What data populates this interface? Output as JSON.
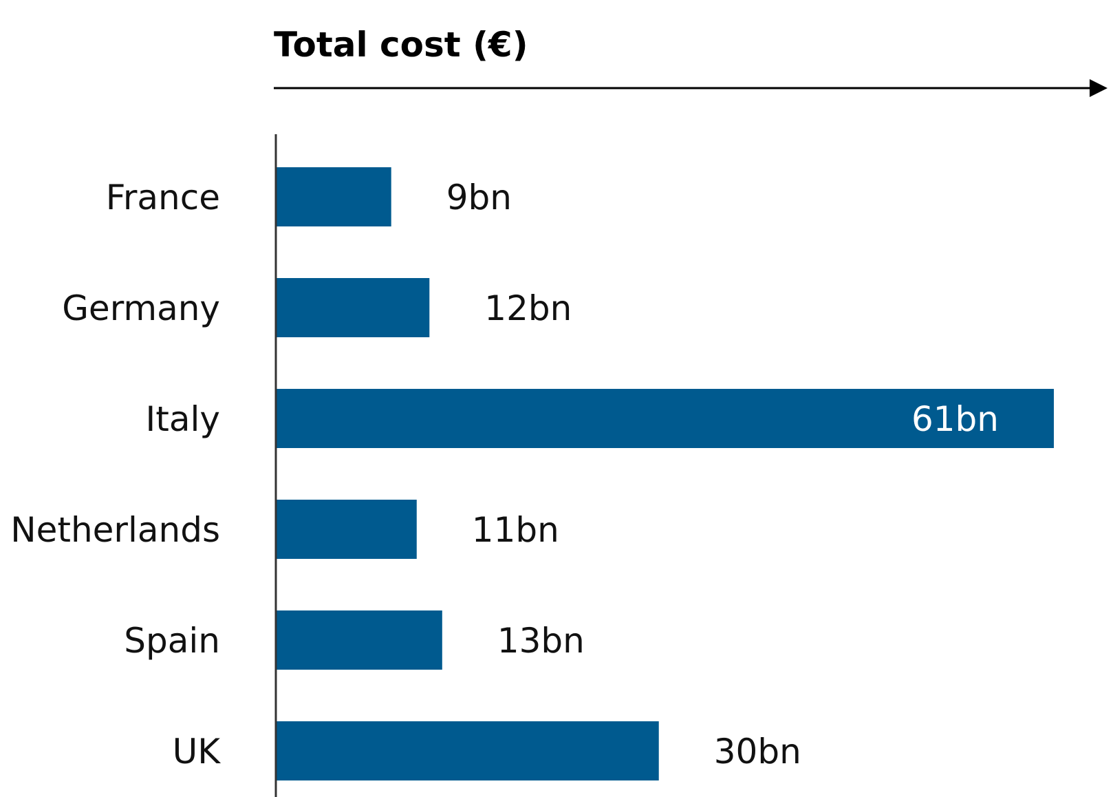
{
  "chart_data": {
    "type": "bar",
    "orientation": "horizontal",
    "title": "Total cost (€)",
    "categories": [
      "France",
      "Germany",
      "Italy",
      "Netherlands",
      "Spain",
      "UK"
    ],
    "values": [
      9,
      12,
      61,
      11,
      13,
      30
    ],
    "value_labels": [
      "9bn",
      "12bn",
      "61bn",
      "11bn",
      "13bn",
      "30bn"
    ],
    "unit": "bn",
    "xlim": [
      0,
      61
    ],
    "grid": false,
    "legend": "none",
    "colors": {
      "bar": "#005a8f",
      "axis": "#000000",
      "label_outside": "#111111",
      "label_inside": "#ffffff"
    }
  }
}
